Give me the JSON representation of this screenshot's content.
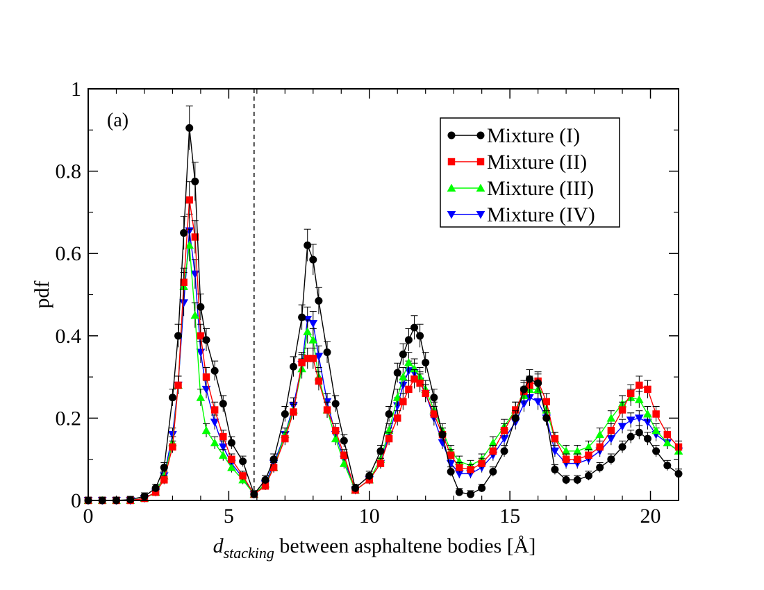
{
  "chart_data": {
    "type": "line",
    "title": "",
    "annotation": "(a)",
    "xlabel_main": "d",
    "xlabel_sub": "stacking",
    "xlabel_rest": " between asphaltene bodies [Å]",
    "ylabel": "pdf",
    "xlim": [
      0,
      21
    ],
    "ylim": [
      0,
      1
    ],
    "xticks": [
      0,
      5,
      10,
      15,
      20
    ],
    "xtick_labels": [
      "0",
      "5",
      "10",
      "15",
      "20"
    ],
    "yticks": [
      0,
      0.2,
      0.4,
      0.6,
      0.8,
      1
    ],
    "ytick_labels": [
      "0",
      "0.2",
      "0.4",
      "0.6",
      "0.8",
      "1"
    ],
    "vline_x": 5.9,
    "legend_position": "top-right",
    "series": [
      {
        "name": "Mixture (I)",
        "color": "#000000",
        "marker": "circle",
        "x": [
          0,
          0.5,
          1,
          1.5,
          2,
          2.4,
          2.7,
          3.0,
          3.2,
          3.4,
          3.6,
          3.8,
          4.0,
          4.2,
          4.5,
          4.8,
          5.1,
          5.5,
          5.9,
          6.3,
          6.6,
          7.0,
          7.3,
          7.6,
          7.8,
          8.0,
          8.2,
          8.5,
          8.8,
          9.1,
          9.5,
          10.0,
          10.4,
          10.7,
          11.0,
          11.2,
          11.4,
          11.6,
          11.8,
          12.0,
          12.3,
          12.6,
          12.9,
          13.2,
          13.6,
          14.0,
          14.4,
          14.8,
          15.2,
          15.5,
          15.7,
          16.0,
          16.3,
          16.6,
          17.0,
          17.4,
          17.8,
          18.2,
          18.6,
          19.0,
          19.3,
          19.6,
          19.9,
          20.2,
          20.6,
          21.0
        ],
        "y": [
          0,
          0,
          0,
          0.002,
          0.01,
          0.03,
          0.08,
          0.25,
          0.4,
          0.65,
          0.905,
          0.775,
          0.47,
          0.39,
          0.315,
          0.235,
          0.14,
          0.095,
          0.015,
          0.05,
          0.1,
          0.21,
          0.325,
          0.445,
          0.62,
          0.585,
          0.485,
          0.36,
          0.235,
          0.145,
          0.03,
          0.06,
          0.12,
          0.21,
          0.31,
          0.355,
          0.39,
          0.42,
          0.4,
          0.335,
          0.25,
          0.16,
          0.07,
          0.02,
          0.015,
          0.03,
          0.07,
          0.12,
          0.2,
          0.27,
          0.295,
          0.285,
          0.2,
          0.075,
          0.05,
          0.05,
          0.06,
          0.08,
          0.1,
          0.13,
          0.155,
          0.165,
          0.15,
          0.12,
          0.085,
          0.065
        ]
      },
      {
        "name": "Mixture (II)",
        "color": "#ff0000",
        "marker": "square",
        "x": [
          0,
          0.5,
          1,
          1.5,
          2,
          2.4,
          2.7,
          3.0,
          3.2,
          3.4,
          3.6,
          3.8,
          4.0,
          4.2,
          4.5,
          4.8,
          5.1,
          5.5,
          5.9,
          6.3,
          6.6,
          7.0,
          7.3,
          7.6,
          7.8,
          8.0,
          8.2,
          8.5,
          8.8,
          9.1,
          9.5,
          10.0,
          10.4,
          10.7,
          11.0,
          11.2,
          11.4,
          11.6,
          11.8,
          12.0,
          12.3,
          12.6,
          12.9,
          13.2,
          13.6,
          14.0,
          14.4,
          14.8,
          15.2,
          15.5,
          15.7,
          16.0,
          16.3,
          16.6,
          17.0,
          17.4,
          17.8,
          18.2,
          18.6,
          19.0,
          19.3,
          19.6,
          19.9,
          20.2,
          20.6,
          21.0
        ],
        "y": [
          0,
          0,
          0,
          0,
          0.005,
          0.02,
          0.05,
          0.13,
          0.28,
          0.53,
          0.73,
          0.64,
          0.4,
          0.3,
          0.22,
          0.155,
          0.1,
          0.06,
          0.015,
          0.035,
          0.08,
          0.15,
          0.215,
          0.335,
          0.345,
          0.345,
          0.29,
          0.22,
          0.17,
          0.11,
          0.025,
          0.05,
          0.09,
          0.15,
          0.2,
          0.24,
          0.27,
          0.295,
          0.285,
          0.26,
          0.21,
          0.16,
          0.11,
          0.08,
          0.075,
          0.09,
          0.12,
          0.17,
          0.22,
          0.265,
          0.28,
          0.29,
          0.24,
          0.15,
          0.1,
          0.1,
          0.11,
          0.13,
          0.17,
          0.22,
          0.26,
          0.28,
          0.27,
          0.21,
          0.16,
          0.13
        ]
      },
      {
        "name": "Mixture (III)",
        "color": "#00ff00",
        "marker": "triangle-up",
        "x": [
          0,
          0.5,
          1,
          1.5,
          2,
          2.4,
          2.7,
          3.0,
          3.2,
          3.4,
          3.6,
          3.8,
          4.0,
          4.2,
          4.5,
          4.8,
          5.1,
          5.5,
          5.9,
          6.3,
          6.6,
          7.0,
          7.3,
          7.6,
          7.8,
          8.0,
          8.2,
          8.5,
          8.8,
          9.1,
          9.5,
          10.0,
          10.4,
          10.7,
          11.0,
          11.2,
          11.4,
          11.6,
          11.8,
          12.0,
          12.3,
          12.6,
          12.9,
          13.2,
          13.6,
          14.0,
          14.4,
          14.8,
          15.2,
          15.5,
          15.7,
          16.0,
          16.3,
          16.6,
          17.0,
          17.4,
          17.8,
          18.2,
          18.6,
          19.0,
          19.3,
          19.6,
          19.9,
          20.2,
          20.6,
          21.0
        ],
        "y": [
          0,
          0,
          0,
          0,
          0.005,
          0.02,
          0.06,
          0.14,
          0.28,
          0.52,
          0.62,
          0.45,
          0.25,
          0.17,
          0.14,
          0.11,
          0.08,
          0.05,
          0.015,
          0.04,
          0.08,
          0.16,
          0.22,
          0.32,
          0.41,
          0.39,
          0.3,
          0.22,
          0.15,
          0.09,
          0.025,
          0.05,
          0.1,
          0.17,
          0.25,
          0.3,
          0.335,
          0.32,
          0.3,
          0.27,
          0.22,
          0.17,
          0.12,
          0.095,
          0.085,
          0.1,
          0.14,
          0.18,
          0.22,
          0.255,
          0.27,
          0.27,
          0.22,
          0.15,
          0.12,
          0.12,
          0.13,
          0.16,
          0.2,
          0.235,
          0.25,
          0.245,
          0.21,
          0.17,
          0.14,
          0.12
        ]
      },
      {
        "name": "Mixture (IV)",
        "color": "#0000ff",
        "marker": "triangle-down",
        "x": [
          0,
          0.5,
          1,
          1.5,
          2,
          2.4,
          2.7,
          3.0,
          3.2,
          3.4,
          3.6,
          3.8,
          4.0,
          4.2,
          4.5,
          4.8,
          5.1,
          5.5,
          5.9,
          6.3,
          6.6,
          7.0,
          7.3,
          7.6,
          7.8,
          8.0,
          8.2,
          8.5,
          8.8,
          9.1,
          9.5,
          10.0,
          10.4,
          10.7,
          11.0,
          11.2,
          11.4,
          11.6,
          11.8,
          12.0,
          12.3,
          12.6,
          12.9,
          13.2,
          13.6,
          14.0,
          14.4,
          14.8,
          15.2,
          15.5,
          15.7,
          16.0,
          16.3,
          16.6,
          17.0,
          17.4,
          17.8,
          18.2,
          18.6,
          19.0,
          19.3,
          19.6,
          19.9,
          20.2,
          20.6,
          21.0
        ],
        "y": [
          0,
          0,
          0,
          0,
          0.005,
          0.02,
          0.06,
          0.16,
          0.28,
          0.48,
          0.655,
          0.55,
          0.36,
          0.27,
          0.19,
          0.13,
          0.09,
          0.055,
          0.015,
          0.04,
          0.09,
          0.16,
          0.23,
          0.33,
          0.44,
          0.43,
          0.35,
          0.24,
          0.16,
          0.1,
          0.025,
          0.05,
          0.09,
          0.16,
          0.23,
          0.28,
          0.315,
          0.31,
          0.29,
          0.26,
          0.2,
          0.14,
          0.09,
          0.065,
          0.065,
          0.08,
          0.11,
          0.15,
          0.19,
          0.235,
          0.25,
          0.24,
          0.2,
          0.12,
          0.09,
          0.09,
          0.1,
          0.12,
          0.15,
          0.18,
          0.195,
          0.2,
          0.19,
          0.16,
          0.14,
          0.12
        ]
      }
    ]
  }
}
